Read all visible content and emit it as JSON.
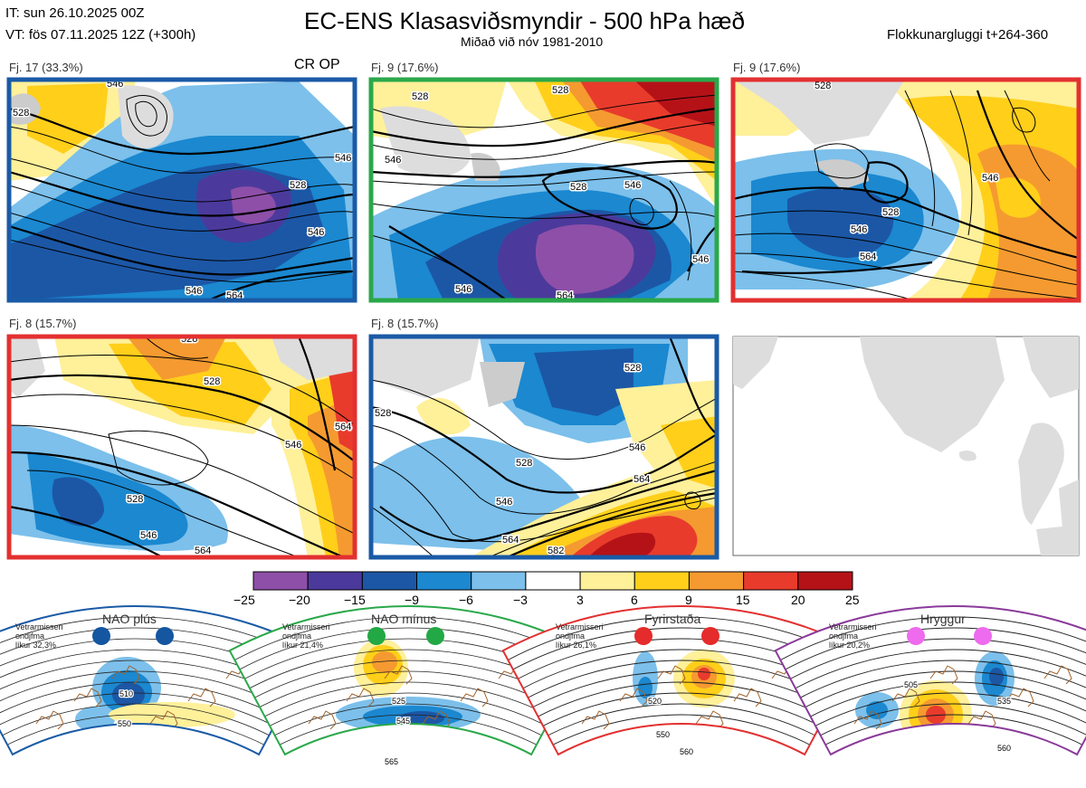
{
  "header": {
    "init_time": "IT: sun 26.10.2025 00Z",
    "valid_time": "VT: fös 07.11.2025 12Z  (+300h)",
    "title": "EC-ENS Klasasviðsmyndir - 500 hPa hæð",
    "subtitle": "Miðað við nóv 1981-2010",
    "window": "Flokkunargluggi t+264-360"
  },
  "panels": [
    {
      "label": "Fj. 17 (33.3%)",
      "tag": "CR OP",
      "border": "#1a5aa6",
      "contours": [
        "528",
        "546",
        "546",
        "528",
        "546",
        "546",
        "564"
      ]
    },
    {
      "label": "Fj. 9 (17.6%)",
      "tag": "",
      "border": "#2aa84a",
      "contours": [
        "528",
        "546",
        "528",
        "528",
        "546",
        "546",
        "564",
        "546"
      ]
    },
    {
      "label": "Fj. 9 (17.6%)",
      "tag": "",
      "border": "#e33030",
      "contours": [
        "528",
        "546",
        "528",
        "546",
        "564"
      ]
    },
    {
      "label": "Fj. 8 (15.7%)",
      "tag": "",
      "border": "#e33030",
      "contours": [
        "528",
        "528",
        "546",
        "564",
        "528",
        "546",
        "564"
      ]
    },
    {
      "label": "Fj. 8 (15.7%)",
      "tag": "",
      "border": "#1a5aa6",
      "contours": [
        "528",
        "528",
        "528",
        "546",
        "546",
        "564",
        "564",
        "582"
      ]
    }
  ],
  "colorbar": {
    "ticks": [
      "−25",
      "−20",
      "−15",
      "−9",
      "−6",
      "−3",
      "3",
      "6",
      "9",
      "15",
      "20",
      "25"
    ],
    "colors": [
      "#8e4fa8",
      "#4b3a9c",
      "#1c57a6",
      "#1b88d0",
      "#7cc0eb",
      "#ffffff",
      "#fff09a",
      "#ffcf1a",
      "#f59a30",
      "#e83b2c",
      "#b51218"
    ]
  },
  "regimes": [
    {
      "name": "NAO plús",
      "note": [
        "Vetrarmisseri",
        "ondjfma",
        "líkur 32,3%"
      ],
      "border": "#1a5aa6",
      "dot": "#1456a0",
      "contours": [
        "510",
        "550"
      ]
    },
    {
      "name": "NAO mínus",
      "note": [
        "Vetrarmisseri",
        "ondjfma",
        "líkur 21,4%"
      ],
      "border": "#2aa84a",
      "dot": "#22a845",
      "contours": [
        "525",
        "545",
        "565"
      ]
    },
    {
      "name": "Fyrirstaða",
      "note": [
        "Vetrarmisseri",
        "ondjfma",
        "líkur 26,1%"
      ],
      "border": "#e33030",
      "dot": "#e52b2b",
      "contours": [
        "520",
        "550",
        "560"
      ]
    },
    {
      "name": "Hryggur",
      "note": [
        "Vetrarmisseri",
        "ondjfma",
        "líkur 20,2%"
      ],
      "border": "#8a3a9a",
      "dot": "#ee6aee",
      "contours": [
        "505",
        "535",
        "560"
      ]
    }
  ]
}
